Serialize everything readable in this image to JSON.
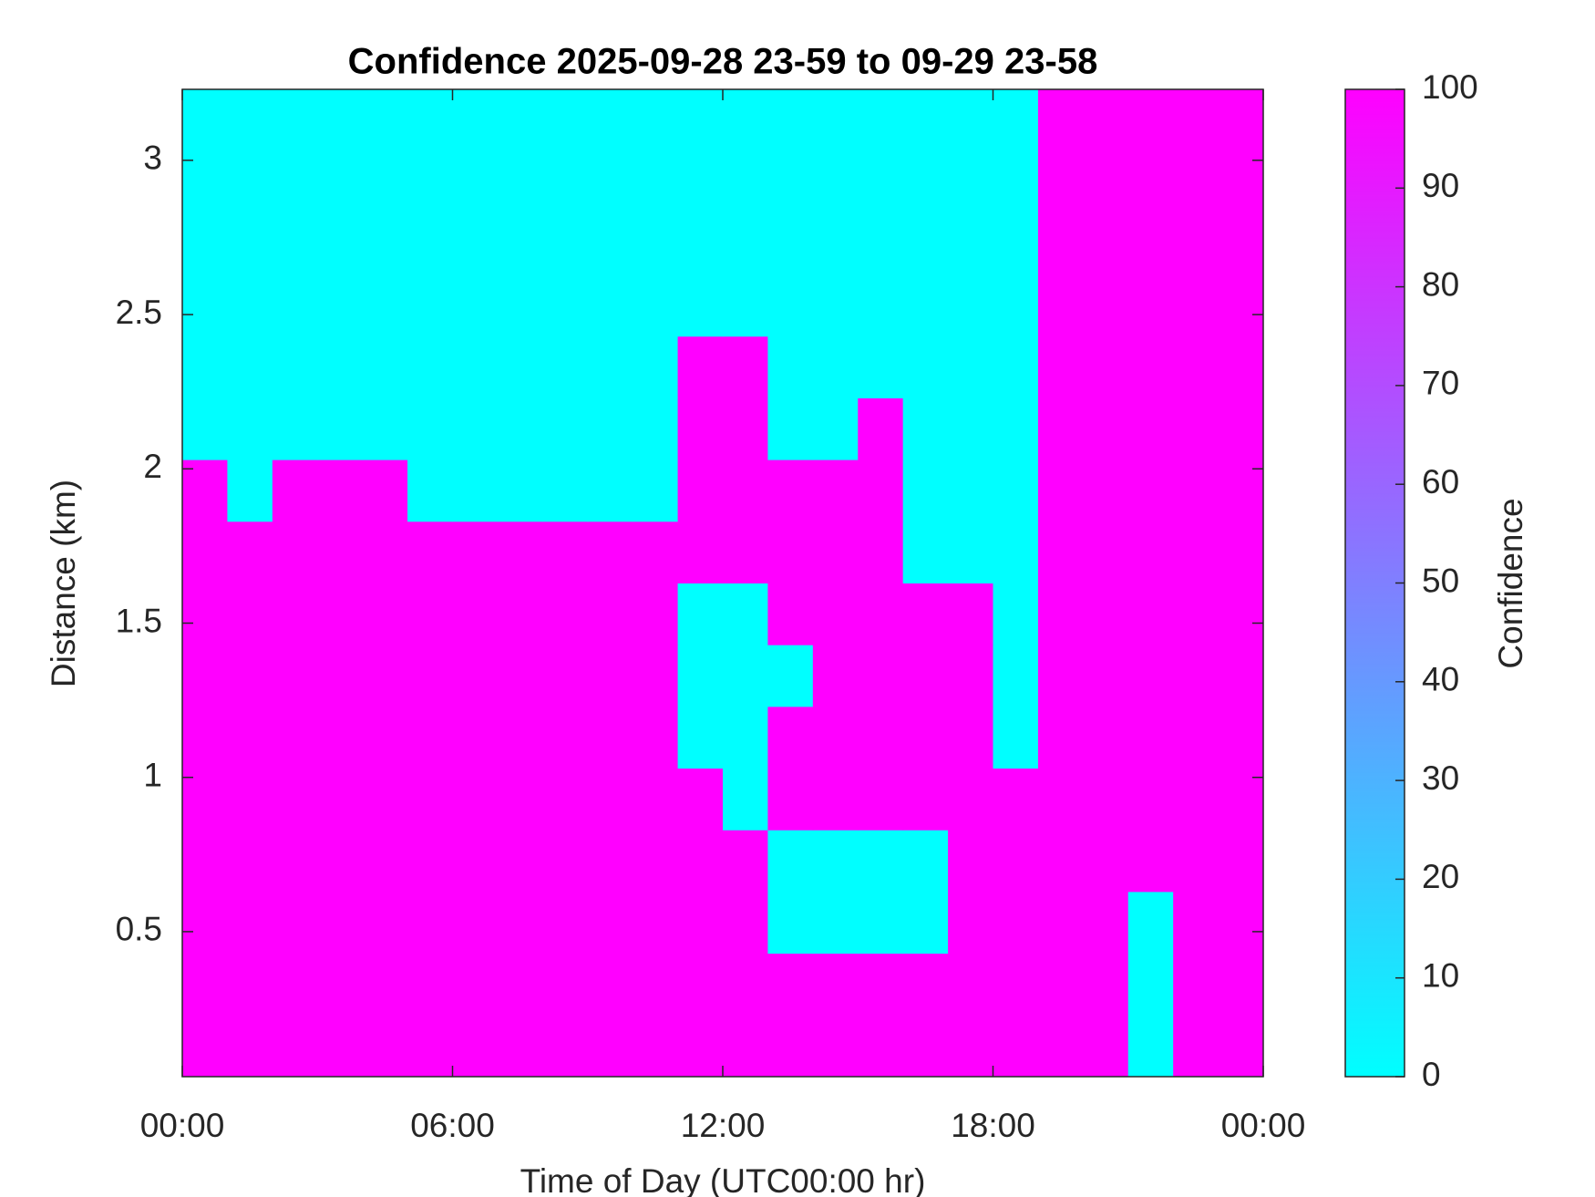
{
  "chart_data": {
    "type": "heatmap",
    "title": "Confidence 2025-09-28 23-59 to 09-29 23-58",
    "xlabel": "Time of Day (UTC00:00 hr)",
    "ylabel": "Distance (km)",
    "x": [
      0.5,
      1.5,
      2.5,
      3.5,
      4.5,
      5.5,
      6.5,
      7.5,
      8.5,
      9.5,
      10.5,
      11.5,
      12.5,
      13.5,
      14.5,
      15.5,
      16.5,
      17.5,
      18.5,
      19.5,
      20.5,
      21.5,
      22.5,
      23.5
    ],
    "y": [
      0.13,
      0.33,
      0.53,
      0.73,
      0.93,
      1.13,
      1.33,
      1.53,
      1.73,
      1.93,
      2.13,
      2.33,
      2.53,
      2.73,
      2.93,
      3.13
    ],
    "z": [
      [
        100,
        100,
        100,
        100,
        100,
        100,
        100,
        100,
        100,
        100,
        100,
        100,
        100,
        100,
        100,
        100,
        100,
        100,
        100,
        100,
        100,
        0,
        100,
        100
      ],
      [
        100,
        100,
        100,
        100,
        100,
        100,
        100,
        100,
        100,
        100,
        100,
        100,
        100,
        100,
        100,
        100,
        100,
        100,
        100,
        100,
        100,
        0,
        100,
        100
      ],
      [
        100,
        100,
        100,
        100,
        100,
        100,
        100,
        100,
        100,
        100,
        100,
        100,
        100,
        0,
        0,
        0,
        0,
        100,
        100,
        100,
        100,
        0,
        100,
        100
      ],
      [
        100,
        100,
        100,
        100,
        100,
        100,
        100,
        100,
        100,
        100,
        100,
        100,
        100,
        0,
        0,
        0,
        0,
        100,
        100,
        100,
        100,
        100,
        100,
        100
      ],
      [
        100,
        100,
        100,
        100,
        100,
        100,
        100,
        100,
        100,
        100,
        100,
        100,
        0,
        100,
        100,
        100,
        100,
        100,
        100,
        100,
        100,
        100,
        100,
        100
      ],
      [
        100,
        100,
        100,
        100,
        100,
        100,
        100,
        100,
        100,
        100,
        100,
        0,
        0,
        100,
        100,
        100,
        100,
        100,
        0,
        100,
        100,
        100,
        100,
        100
      ],
      [
        100,
        100,
        100,
        100,
        100,
        100,
        100,
        100,
        100,
        100,
        100,
        0,
        0,
        0,
        100,
        100,
        100,
        100,
        0,
        100,
        100,
        100,
        100,
        100
      ],
      [
        100,
        100,
        100,
        100,
        100,
        100,
        100,
        100,
        100,
        100,
        100,
        0,
        0,
        100,
        100,
        100,
        100,
        100,
        0,
        100,
        100,
        100,
        100,
        100
      ],
      [
        100,
        100,
        100,
        100,
        100,
        100,
        100,
        100,
        100,
        100,
        100,
        100,
        100,
        100,
        100,
        100,
        0,
        0,
        0,
        100,
        100,
        100,
        100,
        100
      ],
      [
        100,
        0,
        100,
        100,
        100,
        0,
        0,
        0,
        0,
        0,
        0,
        100,
        100,
        100,
        100,
        100,
        0,
        0,
        0,
        100,
        100,
        100,
        100,
        100
      ],
      [
        0,
        0,
        0,
        0,
        0,
        0,
        0,
        0,
        0,
        0,
        0,
        100,
        100,
        0,
        0,
        100,
        0,
        0,
        0,
        100,
        100,
        100,
        100,
        100
      ],
      [
        0,
        0,
        0,
        0,
        0,
        0,
        0,
        0,
        0,
        0,
        0,
        100,
        100,
        0,
        0,
        0,
        0,
        0,
        0,
        100,
        100,
        100,
        100,
        100
      ],
      [
        0,
        0,
        0,
        0,
        0,
        0,
        0,
        0,
        0,
        0,
        0,
        0,
        0,
        0,
        0,
        0,
        0,
        0,
        0,
        100,
        100,
        100,
        100,
        100
      ],
      [
        0,
        0,
        0,
        0,
        0,
        0,
        0,
        0,
        0,
        0,
        0,
        0,
        0,
        0,
        0,
        0,
        0,
        0,
        0,
        100,
        100,
        100,
        100,
        100
      ],
      [
        0,
        0,
        0,
        0,
        0,
        0,
        0,
        0,
        0,
        0,
        0,
        0,
        0,
        0,
        0,
        0,
        0,
        0,
        0,
        100,
        100,
        100,
        100,
        100
      ],
      [
        0,
        0,
        0,
        0,
        0,
        0,
        0,
        0,
        0,
        0,
        0,
        0,
        0,
        0,
        0,
        0,
        0,
        0,
        0,
        100,
        100,
        100,
        100,
        100
      ]
    ],
    "xlim": [
      0,
      24
    ],
    "xticks": [
      {
        "value": 0,
        "label": "00:00"
      },
      {
        "value": 6,
        "label": "06:00"
      },
      {
        "value": 12,
        "label": "12:00"
      },
      {
        "value": 18,
        "label": "18:00"
      },
      {
        "value": 24,
        "label": "00:00"
      }
    ],
    "ylim": [
      0.03,
      3.23
    ],
    "yticks": [
      0.5,
      1,
      1.5,
      2,
      2.5,
      3
    ],
    "colormap": [
      "#00ffff",
      "#ff00ff"
    ],
    "zlim": [
      0,
      100
    ],
    "zticks": [
      0,
      10,
      20,
      30,
      40,
      50,
      60,
      70,
      80,
      90,
      100
    ],
    "zlabel": "Confidence"
  }
}
